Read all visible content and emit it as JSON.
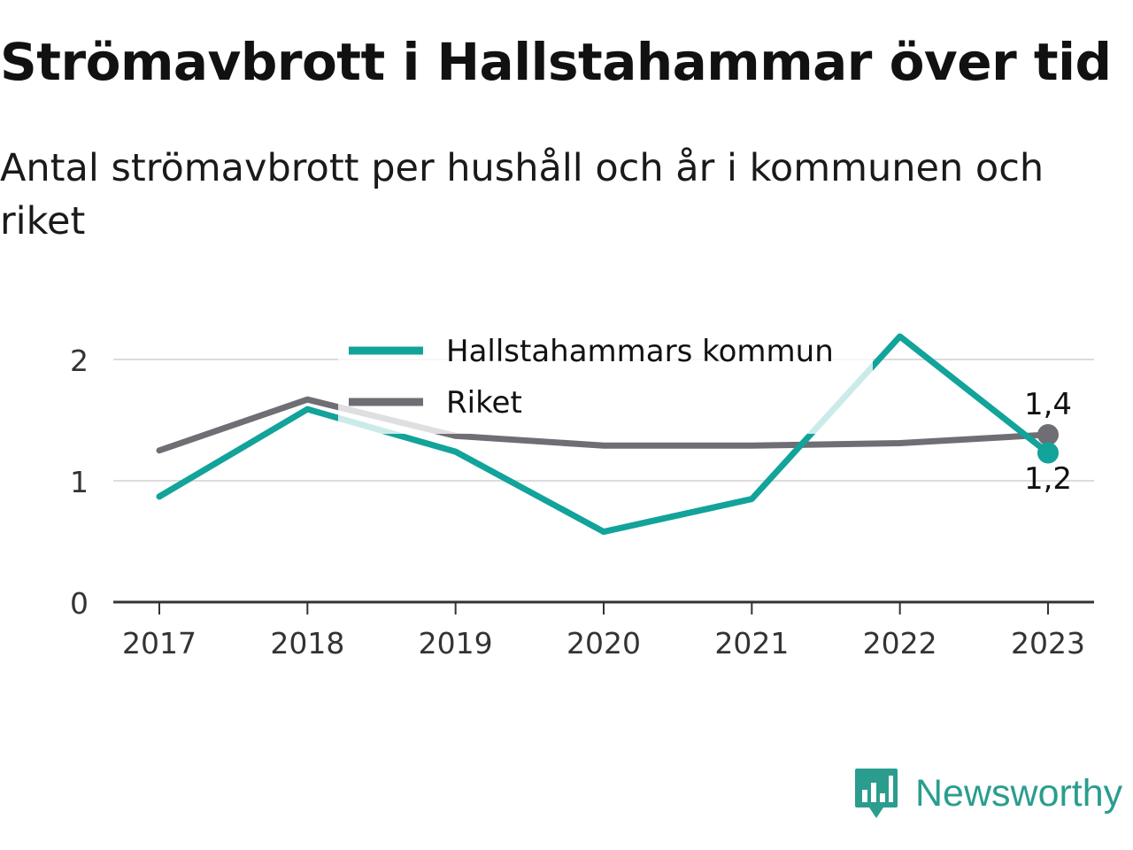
{
  "header": {
    "title": "Strömavbrott i Hallstahammar över tid",
    "subtitle": "Antal strömavbrott per hushåll och år i kommunen och riket"
  },
  "brand": {
    "name": "Newsworthy",
    "icon": "bar-chart-speech-bubble-icon"
  },
  "chart_data": {
    "type": "line",
    "categories": [
      "2017",
      "2018",
      "2019",
      "2020",
      "2021",
      "2022",
      "2023"
    ],
    "series": [
      {
        "name": "Hallstahammars kommun",
        "color": "#12a39a",
        "values": [
          0.87,
          1.59,
          1.24,
          0.58,
          0.85,
          2.19,
          1.23
        ],
        "end_label": "1,2"
      },
      {
        "name": "Riket",
        "color": "#6f6e75",
        "values": [
          1.25,
          1.67,
          1.37,
          1.29,
          1.29,
          1.31,
          1.38
        ],
        "end_label": "1,4"
      }
    ],
    "ylim": [
      0,
      2.2
    ],
    "yticks": [
      0,
      1,
      2
    ],
    "ytick_labels": [
      "0",
      "1",
      "2"
    ],
    "xlabel": "",
    "ylabel": "",
    "grid": true,
    "legend": "top-center"
  }
}
